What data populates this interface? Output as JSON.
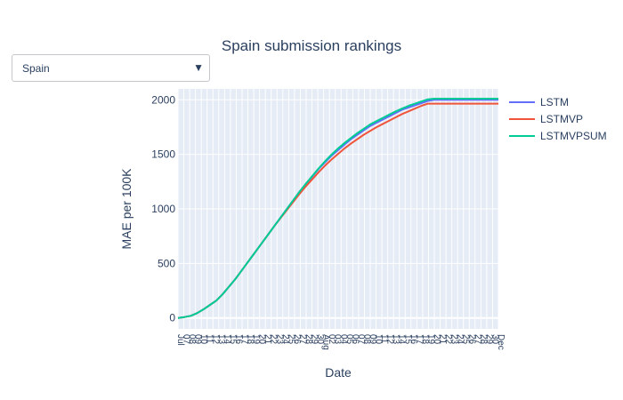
{
  "dropdown": {
    "selected": "Spain"
  },
  "chart_data": {
    "type": "line",
    "title": "Spain submission rankings",
    "xlabel": "Date",
    "ylabel": "MAE per 100K",
    "ylim": [
      -100,
      2100
    ],
    "yticks": [
      0,
      500,
      1000,
      1500,
      2000
    ],
    "grid": true,
    "legend_position": "top-right",
    "x_tick_labels": [
      "Jul",
      "07",
      "08",
      "09",
      "10",
      "11",
      "12",
      "13",
      "14",
      "15",
      "16",
      "17",
      "18",
      "19",
      "20",
      "21",
      "22",
      "23",
      "24",
      "25",
      "26",
      "27",
      "28",
      "29",
      "30",
      "Aug",
      "02",
      "03",
      "04",
      "05",
      "06",
      "07",
      "08",
      "09",
      "10",
      "11",
      "12",
      "13",
      "14",
      "15",
      "16",
      "17",
      "18",
      "19",
      "20",
      "21",
      "22",
      "23",
      "24",
      "25",
      "26",
      "27",
      "28",
      "29",
      "30",
      "Dec"
    ],
    "x": [
      0,
      2,
      4,
      6,
      8,
      10,
      12,
      14,
      16,
      18,
      20,
      22,
      24,
      26,
      28,
      30,
      32,
      34,
      36,
      38,
      40,
      42,
      44,
      46,
      48,
      50,
      52,
      54,
      56,
      58,
      60,
      62,
      64,
      66,
      68,
      70,
      72,
      74,
      76,
      78,
      80,
      82,
      84,
      86,
      88,
      90,
      92,
      94,
      96,
      98,
      100
    ],
    "series": [
      {
        "name": "LSTM",
        "color": "#636efa",
        "values": [
          0,
          8,
          20,
          45,
          80,
          120,
          160,
          220,
          290,
          360,
          440,
          520,
          600,
          680,
          760,
          840,
          920,
          1000,
          1080,
          1160,
          1230,
          1300,
          1370,
          1430,
          1490,
          1540,
          1590,
          1640,
          1680,
          1720,
          1760,
          1790,
          1820,
          1850,
          1880,
          1910,
          1930,
          1950,
          1970,
          1990,
          2000,
          2000,
          2000,
          2000,
          2000,
          2000,
          2000,
          2000,
          2000,
          2000,
          2000
        ]
      },
      {
        "name": "LSTMVP",
        "color": "#ef553b",
        "values": [
          0,
          8,
          20,
          45,
          80,
          120,
          160,
          220,
          290,
          360,
          440,
          520,
          600,
          680,
          760,
          840,
          915,
          990,
          1065,
          1140,
          1210,
          1275,
          1340,
          1400,
          1455,
          1505,
          1555,
          1600,
          1640,
          1680,
          1715,
          1750,
          1780,
          1810,
          1840,
          1870,
          1895,
          1920,
          1945,
          1965,
          1965,
          1965,
          1965,
          1965,
          1965,
          1965,
          1965,
          1965,
          1965,
          1965,
          1965
        ]
      },
      {
        "name": "LSTMVPSUM",
        "color": "#00cc96",
        "values": [
          0,
          8,
          20,
          45,
          80,
          120,
          160,
          220,
          290,
          360,
          440,
          520,
          600,
          680,
          760,
          840,
          920,
          1000,
          1080,
          1160,
          1235,
          1305,
          1375,
          1440,
          1500,
          1555,
          1605,
          1650,
          1695,
          1735,
          1775,
          1805,
          1835,
          1865,
          1895,
          1920,
          1945,
          1965,
          1985,
          2005,
          2010,
          2010,
          2010,
          2010,
          2010,
          2010,
          2010,
          2010,
          2010,
          2010,
          2010
        ]
      }
    ]
  }
}
